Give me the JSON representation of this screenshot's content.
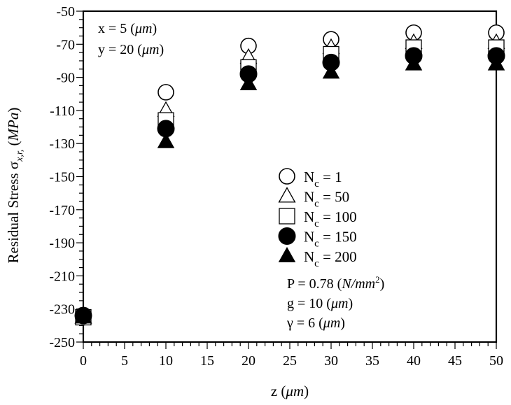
{
  "chart_data": {
    "type": "scatter",
    "title": "",
    "xlabel": "z (μm)",
    "xlabel_parts": {
      "var": "z",
      "unit": "μm"
    },
    "ylabel": "Residual Stress σx,r, (MPa)",
    "ylabel_parts": {
      "main": "Residual Stress ",
      "symbol": "σ",
      "sub": "x,r,",
      "unit": "MPa"
    },
    "xlim": [
      0,
      50
    ],
    "ylim": [
      -250,
      -50
    ],
    "x_ticks": [
      0,
      5,
      10,
      15,
      20,
      25,
      30,
      35,
      40,
      45,
      50
    ],
    "x_minor_step": 1,
    "y_ticks": [
      -50,
      -70,
      -90,
      -110,
      -130,
      -150,
      -170,
      -190,
      -210,
      -230,
      -250
    ],
    "y_minor_step": 5,
    "grid": false,
    "legend_position": "center-right inside",
    "x": [
      0,
      10,
      20,
      30,
      40,
      50
    ],
    "series": [
      {
        "name": "Nc = 1",
        "label_main": "N",
        "label_sub": "c",
        "label_val": " = 1",
        "marker": "circle-open",
        "values": [
          -235,
          -99,
          -71,
          -67,
          -63,
          -63
        ]
      },
      {
        "name": "Nc = 50",
        "label_main": "N",
        "label_sub": "c",
        "label_val": " = 50",
        "marker": "triangle-open",
        "values": [
          -235,
          -110,
          -78,
          -72,
          -69,
          -69
        ]
      },
      {
        "name": "Nc = 100",
        "label_main": "N",
        "label_sub": "c",
        "label_val": " = 100",
        "marker": "square-open",
        "values": [
          -235,
          -116,
          -84,
          -76,
          -72,
          -72
        ]
      },
      {
        "name": "Nc = 150",
        "label_main": "N",
        "label_sub": "c",
        "label_val": " = 150",
        "marker": "circle-filled",
        "values": [
          -234,
          -121,
          -88,
          -81,
          -77,
          -77
        ]
      },
      {
        "name": "Nc = 200",
        "label_main": "N",
        "label_sub": "c",
        "label_val": " = 200",
        "marker": "triangle-filled",
        "values": [
          -235,
          -129,
          -94,
          -87,
          -82,
          -82
        ]
      }
    ],
    "annotations": {
      "top_left": [
        {
          "text": "x = 5 (",
          "unit": "μm",
          "close": ")"
        },
        {
          "text": "y = 20 (",
          "unit": "μm",
          "close": ")"
        }
      ],
      "params": [
        {
          "text": "P = 0.78 (",
          "unit": "N/mm",
          "sup": "2",
          "close": ")"
        },
        {
          "text": "g = 10 (",
          "unit": "μm",
          "sup": "",
          "close": ")"
        },
        {
          "text": "γ = 6 (",
          "unit": "μm",
          "sup": "",
          "close": ")"
        }
      ]
    }
  },
  "colors": {
    "axis": "#000000",
    "marker_fill": "#000000",
    "marker_open": "#ffffff",
    "background": "#ffffff"
  }
}
